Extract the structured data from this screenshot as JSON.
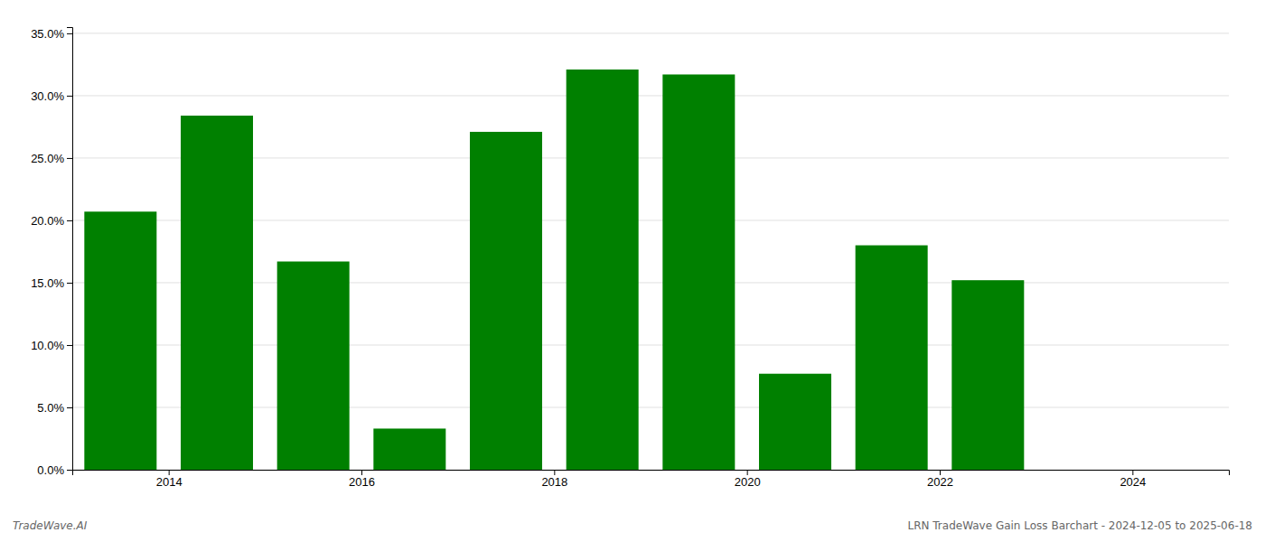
{
  "chart_data": {
    "type": "bar",
    "x": [
      2013.5,
      2014.5,
      2015.5,
      2016.5,
      2017.5,
      2018.5,
      2019.5,
      2020.5,
      2021.5,
      2022.5
    ],
    "values": [
      0.207,
      0.284,
      0.167,
      0.033,
      0.271,
      0.321,
      0.317,
      0.077,
      0.18,
      0.152
    ],
    "color": "#008000",
    "xlim": [
      2013.0,
      2025.0
    ],
    "xticks": [
      2014,
      2016,
      2018,
      2020,
      2022,
      2024
    ],
    "ylim": [
      0.0,
      0.355
    ],
    "yticks": [
      {
        "value": 0.0,
        "label": "0.0%"
      },
      {
        "value": 0.05,
        "label": "5.0%"
      },
      {
        "value": 0.1,
        "label": "10.0%"
      },
      {
        "value": 0.15,
        "label": "15.0%"
      },
      {
        "value": 0.2,
        "label": "20.0%"
      },
      {
        "value": 0.25,
        "label": "25.0%"
      },
      {
        "value": 0.3,
        "label": "30.0%"
      },
      {
        "value": 0.35,
        "label": "35.0%"
      }
    ],
    "grid": true,
    "annotations": [
      "TradeWave.AI",
      "LRN TradeWave Gain Loss Barchart - 2024-12-05 to 2025-06-18"
    ]
  }
}
